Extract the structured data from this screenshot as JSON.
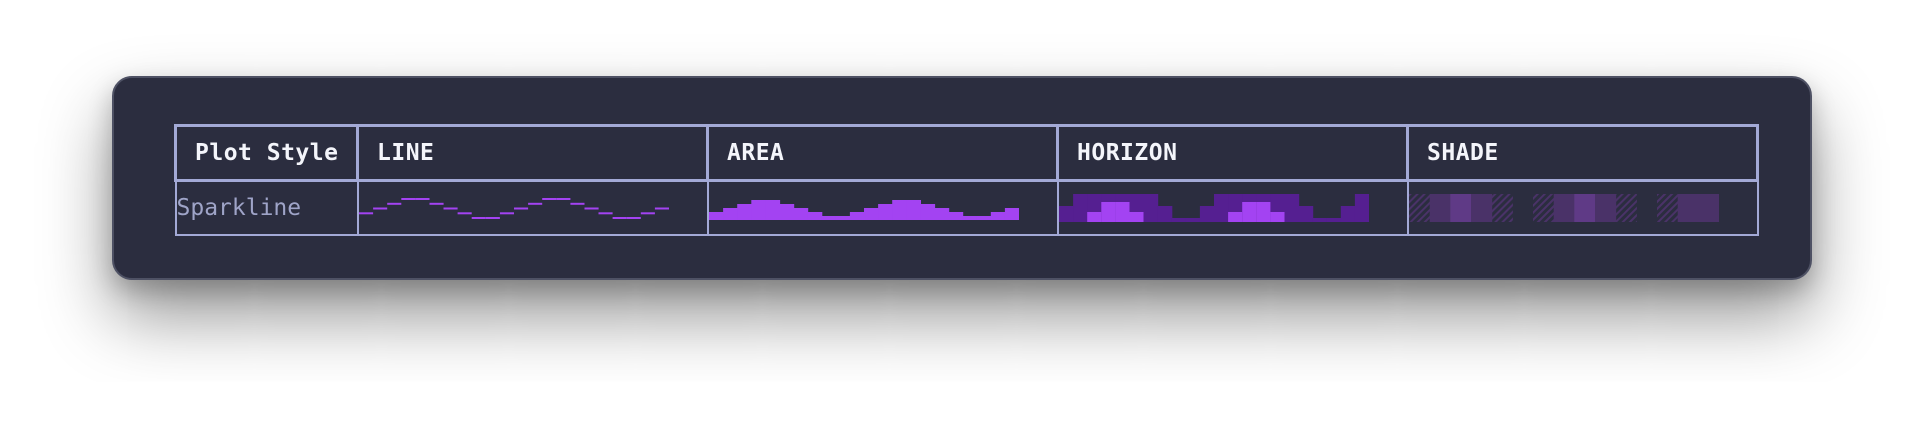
{
  "table": {
    "headers": [
      "Plot Style",
      "LINE",
      "AREA",
      "HORIZON",
      "SHADE"
    ],
    "row_label": "Sparkline"
  },
  "colors": {
    "window_bg": "#2b2d3f",
    "grid_border": "#a3a9d6",
    "header_text": "#f4f5fb",
    "label_text": "#9fa4c8",
    "accent": "#a343f2",
    "horizon_dark": "#551f91",
    "horizon_light": "#a343f2",
    "shade_levels": [
      "#3a2c55",
      "#4a3268",
      "#5f3a86"
    ]
  },
  "chart_data": {
    "type": "line",
    "values": [
      1,
      2,
      3,
      4,
      4,
      3,
      2,
      1,
      0,
      0,
      1,
      2,
      3,
      4,
      4,
      3,
      2,
      1,
      0,
      0,
      1,
      2
    ],
    "ylim": [
      0,
      4
    ],
    "shade_values": [
      0.4,
      1.2,
      1.9,
      1.2,
      0.3,
      0,
      0.4,
      1.2,
      1.9,
      1.2,
      0.3,
      0,
      0.4,
      0.9,
      0.8
    ]
  }
}
